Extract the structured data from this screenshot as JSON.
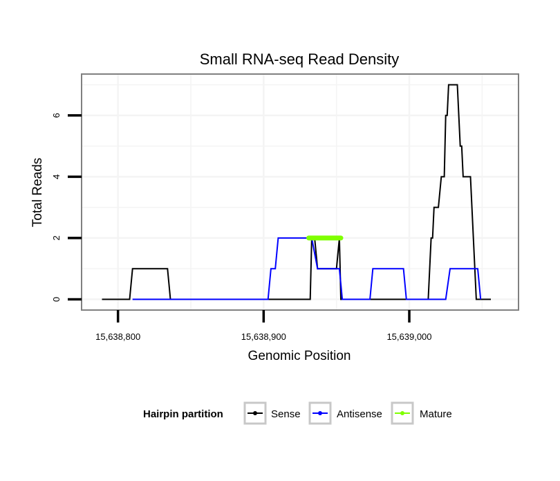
{
  "chart_data": {
    "type": "line",
    "title": "Small RNA-seq Read Density",
    "xlabel": "Genomic Position",
    "ylabel": "Total Reads",
    "xlim": [
      15638775,
      15639075
    ],
    "ylim": [
      -0.35,
      7.35
    ],
    "x_ticks": [
      15638800,
      15638900,
      15639000
    ],
    "x_tick_labels": [
      "15,638,800",
      "15,638,900",
      "15,639,000"
    ],
    "y_ticks": [
      0,
      2,
      4,
      6
    ],
    "y_tick_labels": [
      "0",
      "2",
      "4",
      "6"
    ],
    "grid": true,
    "legend": {
      "title": "Hairpin partition",
      "position": "bottom"
    },
    "series": [
      {
        "name": "Sense",
        "color": "#000000",
        "points": [
          [
            15638789,
            0
          ],
          [
            15638808,
            0
          ],
          [
            15638810,
            1
          ],
          [
            15638834,
            1
          ],
          [
            15638836,
            0
          ],
          [
            15638932,
            0
          ],
          [
            15638933,
            2
          ],
          [
            15638935,
            2
          ],
          [
            15638937,
            1
          ],
          [
            15638950,
            1
          ],
          [
            15638952,
            2
          ],
          [
            15638953,
            0
          ],
          [
            15639013,
            0
          ],
          [
            15639015,
            2
          ],
          [
            15639016,
            2
          ],
          [
            15639017,
            3
          ],
          [
            15639020,
            3
          ],
          [
            15639022,
            4
          ],
          [
            15639024,
            4
          ],
          [
            15639025,
            6
          ],
          [
            15639026,
            6
          ],
          [
            15639027,
            7
          ],
          [
            15639033,
            7
          ],
          [
            15639035,
            5
          ],
          [
            15639036,
            5
          ],
          [
            15639037,
            4
          ],
          [
            15639042,
            4
          ],
          [
            15639044,
            2
          ],
          [
            15639045,
            1
          ],
          [
            15639046,
            0
          ],
          [
            15639056,
            0
          ]
        ]
      },
      {
        "name": "Antisense",
        "color": "#0000ff",
        "points": [
          [
            15638810,
            0
          ],
          [
            15638834,
            0
          ],
          [
            15638836,
            0
          ],
          [
            15638903,
            0
          ],
          [
            15638905,
            1
          ],
          [
            15638908,
            1
          ],
          [
            15638910,
            2
          ],
          [
            15638933,
            2
          ],
          [
            15638937,
            1
          ],
          [
            15638952,
            1
          ],
          [
            15638954,
            0
          ],
          [
            15638973,
            0
          ],
          [
            15638975,
            1
          ],
          [
            15638996,
            1
          ],
          [
            15638998,
            0
          ],
          [
            15639025,
            0
          ],
          [
            15639028,
            1
          ],
          [
            15639047,
            1
          ],
          [
            15639049,
            0
          ]
        ]
      },
      {
        "name": "Mature",
        "color": "#7fff00",
        "points": [
          [
            15638931,
            2
          ],
          [
            15638953,
            2
          ]
        ]
      }
    ]
  }
}
